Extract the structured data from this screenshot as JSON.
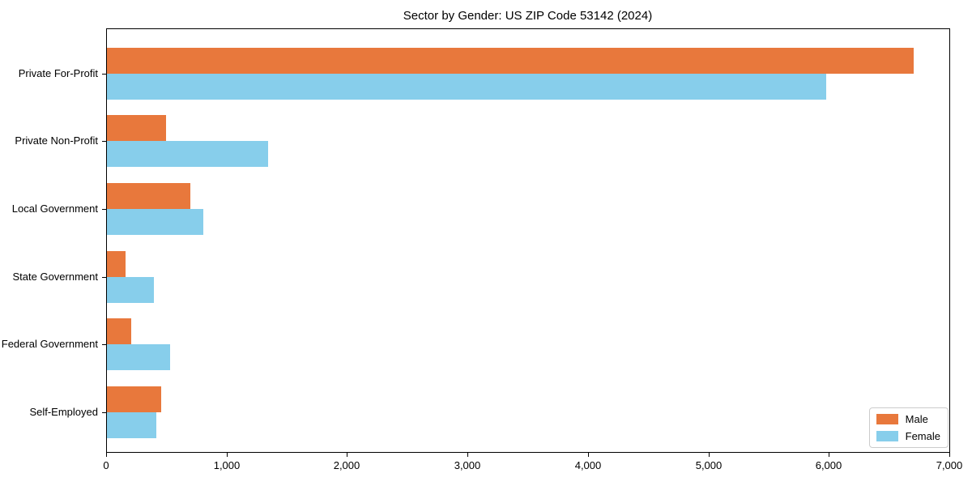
{
  "chart_data": {
    "type": "bar",
    "orientation": "horizontal",
    "title": "Sector by Gender: US ZIP Code 53142 (2024)",
    "categories": [
      "Private For-Profit",
      "Private Non-Profit",
      "Local Government",
      "State Government",
      "Federal Government",
      "Self-Employed"
    ],
    "series": [
      {
        "name": "Male",
        "color": "#e8783c",
        "values": [
          6700,
          490,
          690,
          155,
          200,
          450
        ]
      },
      {
        "name": "Female",
        "color": "#87ceeb",
        "values": [
          5970,
          1340,
          800,
          390,
          525,
          410
        ]
      }
    ],
    "xlabel": "",
    "ylabel": "",
    "xlim": [
      0,
      7000
    ],
    "xticks": [
      0,
      1000,
      2000,
      3000,
      4000,
      5000,
      6000,
      7000
    ],
    "xtick_labels": [
      "0",
      "1,000",
      "2,000",
      "3,000",
      "4,000",
      "5,000",
      "6,000",
      "7,000"
    ],
    "grid": false,
    "legend_position": "lower right",
    "background": "#ffffff"
  }
}
